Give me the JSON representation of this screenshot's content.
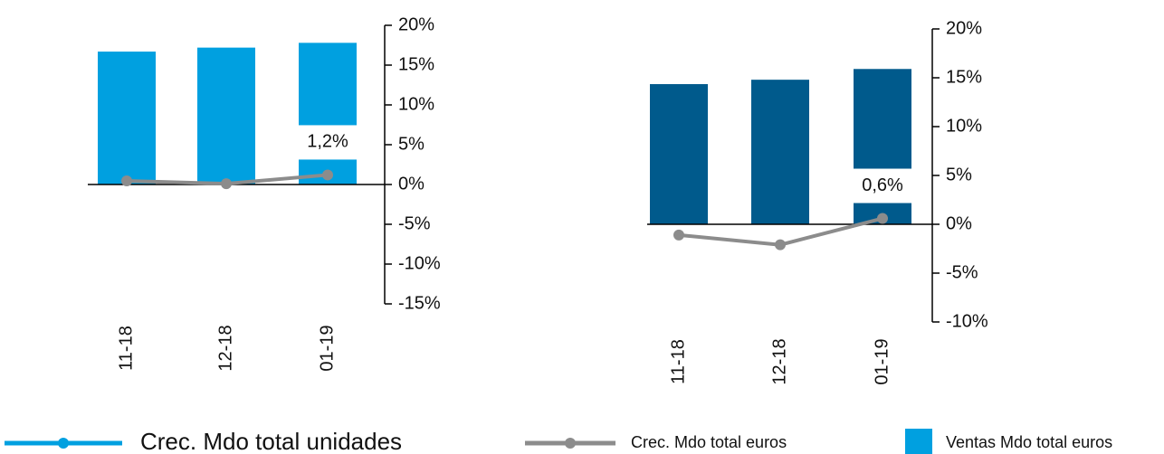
{
  "chart_data": [
    {
      "type": "bar",
      "categories": [
        "11-18",
        "12-18",
        "01-19"
      ],
      "series": [
        {
          "type": "bar",
          "color": "#00a0e0",
          "values": [
            16.7,
            17.2,
            17.8
          ]
        },
        {
          "type": "line",
          "color": "#8c8c8c",
          "values": [
            0.45,
            0.1,
            1.2
          ],
          "value_labels": [
            null,
            null,
            "1,2%"
          ]
        }
      ],
      "ylim": [
        -15,
        20
      ],
      "yticks": [
        {
          "value": 20,
          "label": "20%"
        },
        {
          "value": 15,
          "label": "15%"
        },
        {
          "value": 10,
          "label": "10%"
        },
        {
          "value": 5,
          "label": "5%"
        },
        {
          "value": 0,
          "label": "0%"
        },
        {
          "value": -5,
          "label": "-5%"
        },
        {
          "value": -10,
          "label": "-10%"
        },
        {
          "value": -15,
          "label": "-15%"
        }
      ]
    },
    {
      "type": "bar",
      "categories": [
        "11-18",
        "12-18",
        "01-19"
      ],
      "series": [
        {
          "type": "bar",
          "color": "#005a8c",
          "values": [
            14.35,
            14.8,
            15.9
          ]
        },
        {
          "type": "line",
          "color": "#8c8c8c",
          "values": [
            -1.1,
            -2.1,
            0.6
          ],
          "value_labels": [
            null,
            null,
            "0,6%"
          ]
        }
      ],
      "ylim": [
        -10,
        20
      ],
      "yticks": [
        {
          "value": 20,
          "label": "20%"
        },
        {
          "value": 15,
          "label": "15%"
        },
        {
          "value": 10,
          "label": "10%"
        },
        {
          "value": 5,
          "label": "5%"
        },
        {
          "value": 0,
          "label": "0%"
        },
        {
          "value": -5,
          "label": "-5%"
        },
        {
          "value": -10,
          "label": "-10%"
        }
      ]
    }
  ],
  "legend": [
    {
      "name": "Crec. Mdo total unidades",
      "color": "#00a0e0",
      "marker": "line"
    },
    {
      "name": "Crec. Mdo total euros",
      "color": "#8c8c8c",
      "marker": "line"
    },
    {
      "name": "Ventas Mdo total euros",
      "color": "#00a0e0",
      "marker": "square"
    }
  ]
}
